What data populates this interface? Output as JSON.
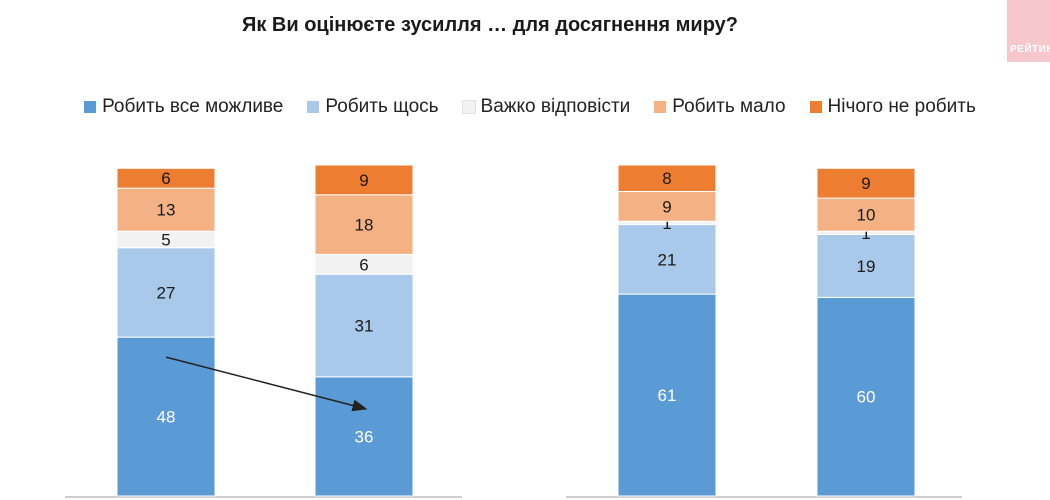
{
  "title": "Як Ви оцінюєте зусилля … для досягнення миру?",
  "logo_text": "РЕЙТИНГ",
  "colors": {
    "Робить все можливе": "#5b9bd5",
    "Робить щось": "#a9c9ea",
    "Важко відповісти": "#f2f2f2",
    "Робить мало": "#f4b183",
    "Нічого не робить": "#ed7d31"
  },
  "legend": [
    {
      "label": "Робить все можливе"
    },
    {
      "label": "Робить щось"
    },
    {
      "label": "Важко відповісти"
    },
    {
      "label": "Робить мало"
    },
    {
      "label": "Нічого не робить"
    }
  ],
  "chart_data": {
    "type": "bar",
    "stacked": true,
    "title": "Як Ви оцінюєте зусилля … для досягнення миру?",
    "ylim": [
      0,
      100
    ],
    "grid": false,
    "legend_position": "top",
    "categories": [
      "",
      "",
      "",
      ""
    ],
    "series": [
      {
        "name": "Робить все можливе",
        "values": [
          48,
          36,
          61,
          60
        ]
      },
      {
        "name": "Робить щось",
        "values": [
          27,
          31,
          21,
          19
        ]
      },
      {
        "name": "Важко відповісти",
        "values": [
          5,
          6,
          1,
          1
        ]
      },
      {
        "name": "Робить мало",
        "values": [
          13,
          18,
          9,
          10
        ]
      },
      {
        "name": "Нічого не робить",
        "values": [
          6,
          9,
          8,
          9
        ]
      }
    ],
    "annotations": [
      {
        "type": "arrow",
        "from_bar": 0,
        "to_bar": 1,
        "series": "Робить все можливе"
      }
    ]
  }
}
